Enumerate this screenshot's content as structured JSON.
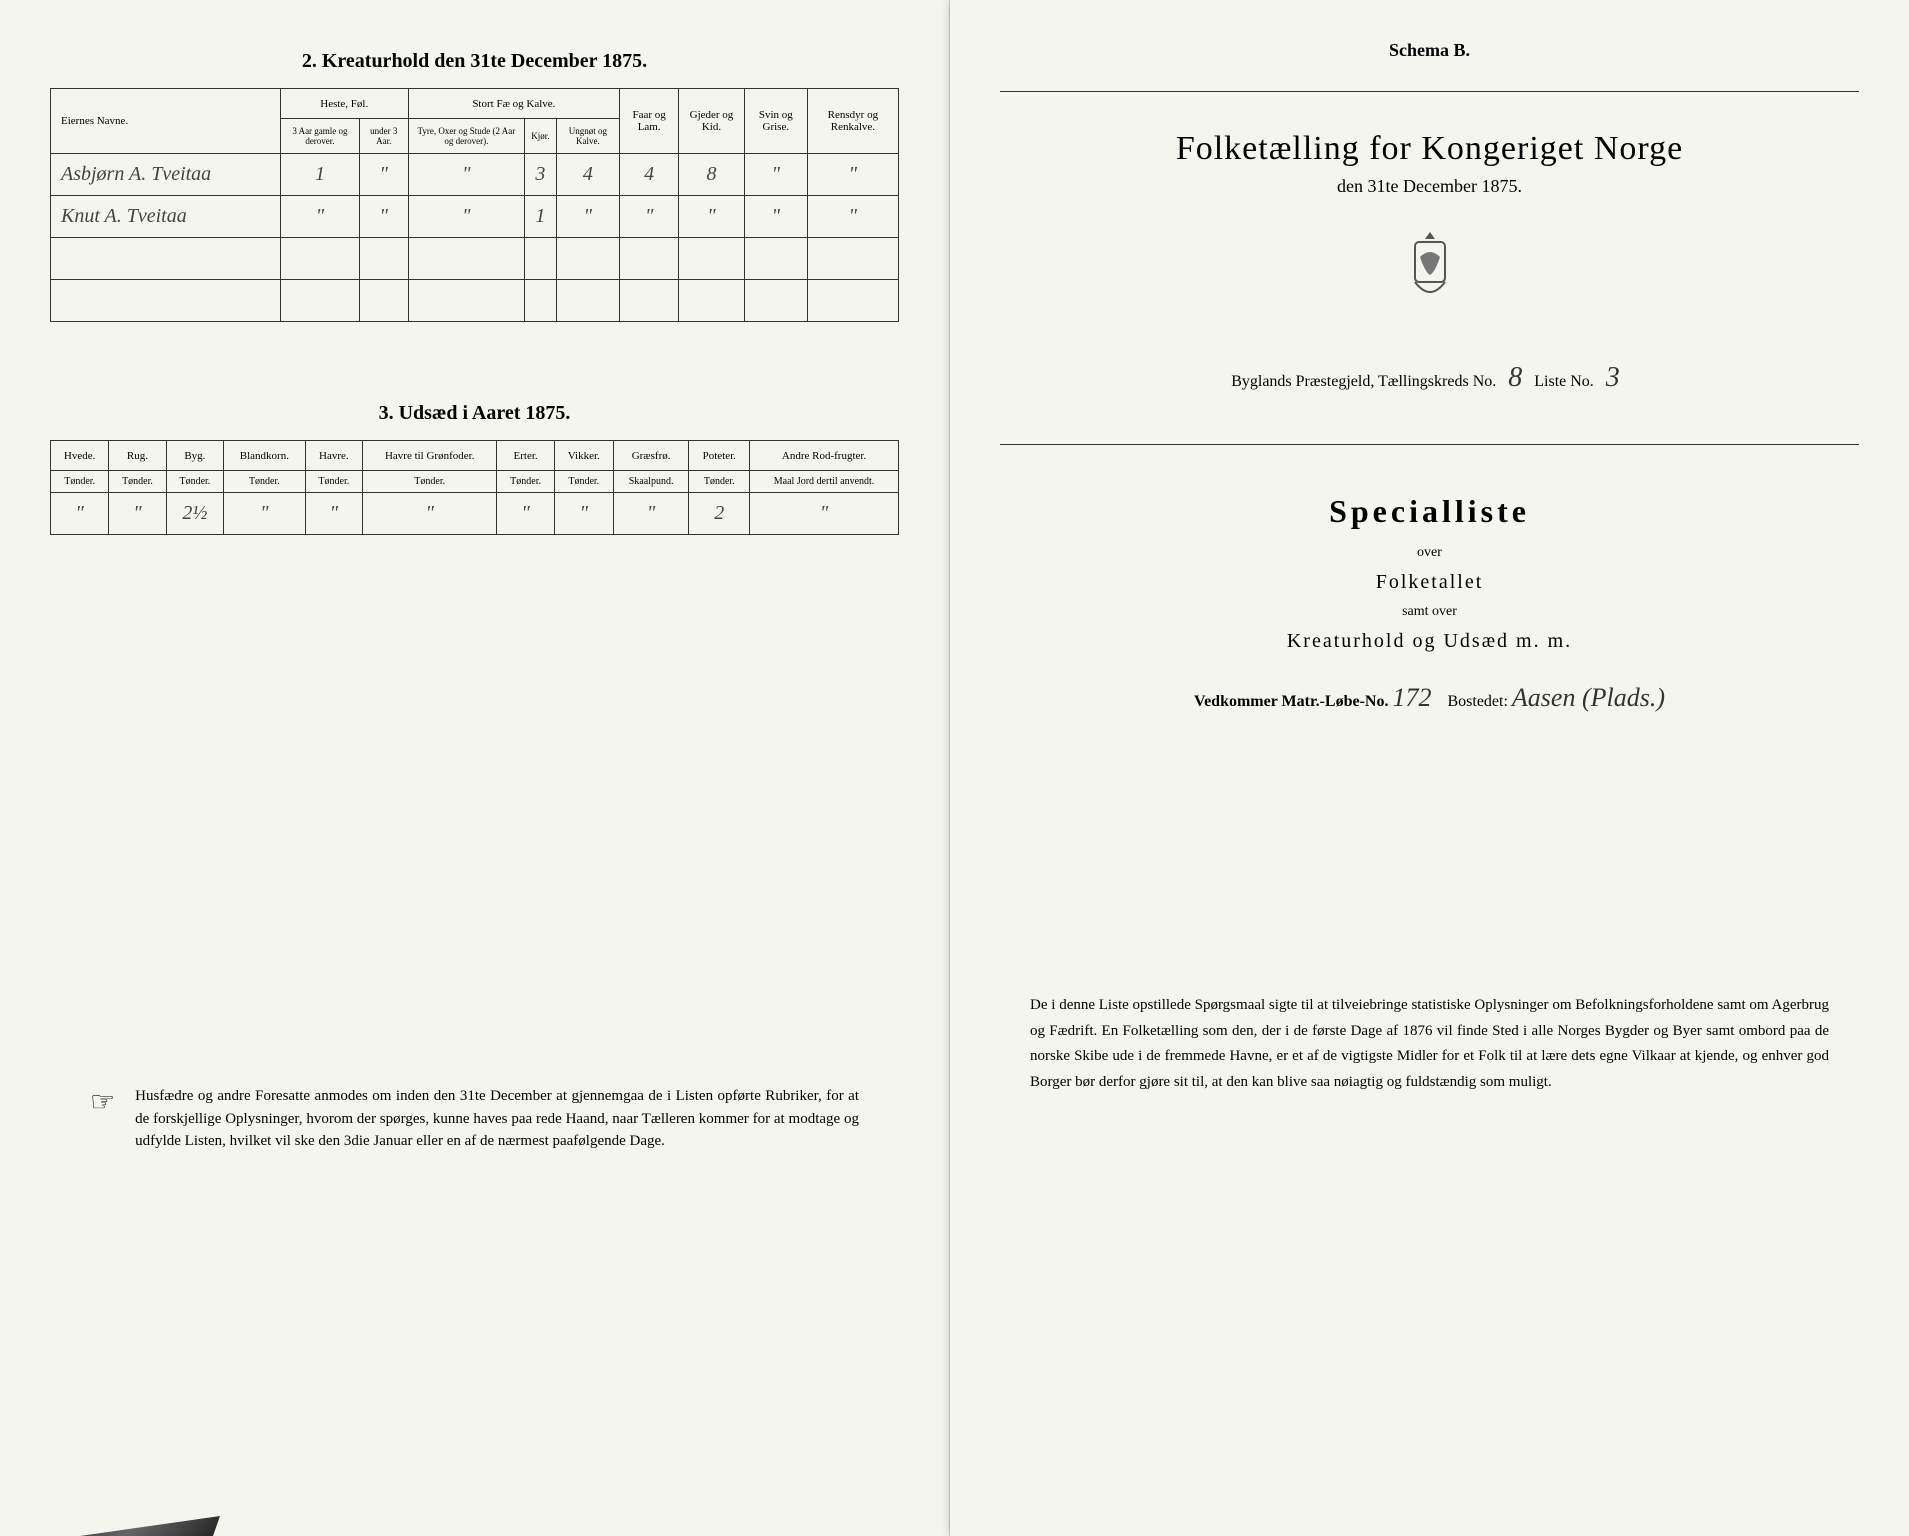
{
  "colors": {
    "page_bg": "#f5f5f0",
    "body_bg": "#e8e8e8",
    "border": "#333333",
    "text": "#222222",
    "handwriting": "#444444"
  },
  "leftPage": {
    "section2": {
      "title": "2. Kreaturhold den 31te December 1875.",
      "headers": {
        "owner": "Eiernes Navne.",
        "heste": "Heste, Føl.",
        "heste_sub1": "3 Aar gamle og derover.",
        "heste_sub2": "under 3 Aar.",
        "stort": "Stort Fæ og Kalve.",
        "stort_sub1": "Tyre, Oxer og Stude (2 Aar og derover).",
        "stort_sub2": "Kjør.",
        "stort_sub3": "Ungnøt og Kalve.",
        "faar": "Faar og Lam.",
        "gjeder": "Gjeder og Kid.",
        "svin": "Svin og Grise.",
        "rensdyr": "Rensdyr og Renkalve."
      },
      "rows": [
        {
          "owner": "Asbjørn A. Tveitaa",
          "heste1": "1",
          "heste2": "\"",
          "stort1": "\"",
          "stort2": "3",
          "stort3": "4",
          "faar": "4",
          "gjeder": "8",
          "svin": "\"",
          "rensdyr": "\""
        },
        {
          "owner": "Knut A. Tveitaa",
          "heste1": "\"",
          "heste2": "\"",
          "stort1": "\"",
          "stort2": "1",
          "stort3": "\"",
          "faar": "\"",
          "gjeder": "\"",
          "svin": "\"",
          "rensdyr": "\""
        },
        {
          "owner": "",
          "heste1": "",
          "heste2": "",
          "stort1": "",
          "stort2": "",
          "stort3": "",
          "faar": "",
          "gjeder": "",
          "svin": "",
          "rensdyr": ""
        },
        {
          "owner": "",
          "heste1": "",
          "heste2": "",
          "stort1": "",
          "stort2": "",
          "stort3": "",
          "faar": "",
          "gjeder": "",
          "svin": "",
          "rensdyr": ""
        }
      ]
    },
    "section3": {
      "title": "3. Udsæd i Aaret 1875.",
      "headers": {
        "hvede": "Hvede.",
        "rug": "Rug.",
        "byg": "Byg.",
        "blandkorn": "Blandkorn.",
        "havre": "Havre.",
        "havretil": "Havre til Grønfoder.",
        "erter": "Erter.",
        "vikker": "Vikker.",
        "graesfroe": "Græsfrø.",
        "poteter": "Poteter.",
        "andre": "Andre Rod-frugter.",
        "tonder": "Tønder.",
        "skaalpund": "Skaalpund.",
        "maaljord": "Maal Jord dertil anvendt."
      },
      "row": {
        "hvede": "\"",
        "rug": "\"",
        "byg": "2½",
        "blandkorn": "\"",
        "havre": "\"",
        "havretil": "\"",
        "erter": "\"",
        "vikker": "\"",
        "graesfroe": "\"",
        "poteter": "2",
        "andre": "\""
      }
    },
    "footnote": "Husfædre og andre Foresatte anmodes om inden den 31te December at gjennemgaa de i Listen opførte Rubriker, for at de forskjellige Oplysninger, hvorom der spørges, kunne haves paa rede Haand, naar Tælleren kommer for at modtage og udfylde Listen, hvilket vil ske den 3die Januar eller en af de nærmest paafølgende Dage."
  },
  "rightPage": {
    "schema": "Schema B.",
    "mainTitle": "Folketælling for Kongeriget Norge",
    "subtitle": "den 31te December 1875.",
    "meta": {
      "prefix": "Byglands Præstegjeld, Tællingskreds No.",
      "kreds": "8",
      "listeLabel": "Liste No.",
      "liste": "3"
    },
    "special": "Specialliste",
    "over": "over",
    "folketallet": "Folketallet",
    "samt": "samt over",
    "kreatur": "Kreaturhold og Udsæd m. m.",
    "vedkommer": {
      "label1": "Vedkommer Matr.-Løbe-No.",
      "num": "172",
      "label2": "Bostedet:",
      "bosted": "Aasen (Plads.)"
    },
    "footnote": "De i denne Liste opstillede Spørgsmaal sigte til at tilveiebringe statistiske Oplysninger om Befolkningsforholdene samt om Agerbrug og Fædrift. En Folketælling som den, der i de første Dage af 1876 vil finde Sted i alle Norges Bygder og Byer samt ombord paa de norske Skibe ude i de fremmede Havne, er et af de vigtigste Midler for et Folk til at lære dets egne Vilkaar at kjende, og enhver god Borger bør derfor gjøre sit til, at den kan blive saa nøiagtig og fuldstændig som muligt."
  }
}
